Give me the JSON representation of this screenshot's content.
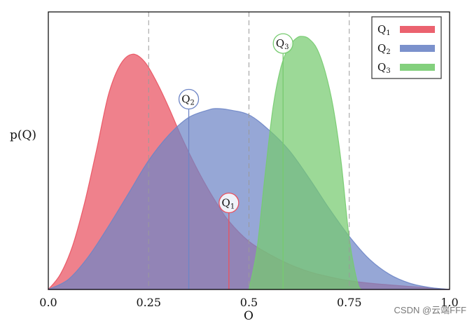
{
  "chart_data": {
    "type": "area",
    "xlabel": "O",
    "ylabel": "p(Q)",
    "xlim": [
      0,
      1
    ],
    "xticks": [
      {
        "value": 0,
        "label": "0.0"
      },
      {
        "value": 0.25,
        "label": "0.25"
      },
      {
        "value": 0.5,
        "label": "0.5"
      },
      {
        "value": 0.75,
        "label": "0.75"
      },
      {
        "value": 1,
        "label": "1.0"
      }
    ],
    "reference_lines_x": [
      0.25,
      0.5,
      0.75
    ],
    "legend_position": "top-right",
    "series": [
      {
        "name": "Q1",
        "label_main": "Q",
        "label_sub": "1",
        "color": "#e9515f",
        "marker_x": 0.45,
        "points": [
          [
            0,
            0
          ],
          [
            0.03,
            0.06
          ],
          [
            0.06,
            0.17
          ],
          [
            0.09,
            0.34
          ],
          [
            0.12,
            0.55
          ],
          [
            0.15,
            0.77
          ],
          [
            0.18,
            0.89
          ],
          [
            0.21,
            0.93
          ],
          [
            0.24,
            0.9
          ],
          [
            0.27,
            0.82
          ],
          [
            0.3,
            0.72
          ],
          [
            0.33,
            0.61
          ],
          [
            0.36,
            0.51
          ],
          [
            0.39,
            0.42
          ],
          [
            0.42,
            0.34
          ],
          [
            0.45,
            0.27
          ],
          [
            0.5,
            0.19
          ],
          [
            0.55,
            0.14
          ],
          [
            0.6,
            0.1
          ],
          [
            0.65,
            0.07
          ],
          [
            0.7,
            0.05
          ],
          [
            0.75,
            0.035
          ],
          [
            0.8,
            0.025
          ],
          [
            0.85,
            0.018
          ],
          [
            0.9,
            0.012
          ],
          [
            0.95,
            0.006
          ],
          [
            1,
            0
          ]
        ]
      },
      {
        "name": "Q2",
        "label_main": "Q",
        "label_sub": "2",
        "color": "#6d85c6",
        "marker_x": 0.35,
        "points": [
          [
            0,
            0
          ],
          [
            0.05,
            0.04
          ],
          [
            0.1,
            0.13
          ],
          [
            0.15,
            0.25
          ],
          [
            0.2,
            0.38
          ],
          [
            0.25,
            0.51
          ],
          [
            0.3,
            0.61
          ],
          [
            0.35,
            0.68
          ],
          [
            0.4,
            0.71
          ],
          [
            0.42,
            0.715
          ],
          [
            0.45,
            0.71
          ],
          [
            0.5,
            0.69
          ],
          [
            0.55,
            0.63
          ],
          [
            0.6,
            0.55
          ],
          [
            0.65,
            0.44
          ],
          [
            0.7,
            0.32
          ],
          [
            0.75,
            0.21
          ],
          [
            0.8,
            0.12
          ],
          [
            0.85,
            0.06
          ],
          [
            0.9,
            0.025
          ],
          [
            0.95,
            0.008
          ],
          [
            1,
            0
          ]
        ]
      },
      {
        "name": "Q3",
        "label_main": "Q",
        "label_sub": "3",
        "color": "#76cb6f",
        "marker_x": 0.585,
        "points": [
          [
            0.5,
            0
          ],
          [
            0.52,
            0.16
          ],
          [
            0.54,
            0.45
          ],
          [
            0.56,
            0.72
          ],
          [
            0.58,
            0.88
          ],
          [
            0.6,
            0.96
          ],
          [
            0.62,
            0.995
          ],
          [
            0.635,
            1.0
          ],
          [
            0.65,
            0.99
          ],
          [
            0.67,
            0.95
          ],
          [
            0.69,
            0.86
          ],
          [
            0.71,
            0.72
          ],
          [
            0.73,
            0.5
          ],
          [
            0.75,
            0.2
          ],
          [
            0.77,
            0.03
          ],
          [
            0.78,
            0
          ]
        ]
      }
    ]
  },
  "watermark": "CSDN @云端FFF"
}
